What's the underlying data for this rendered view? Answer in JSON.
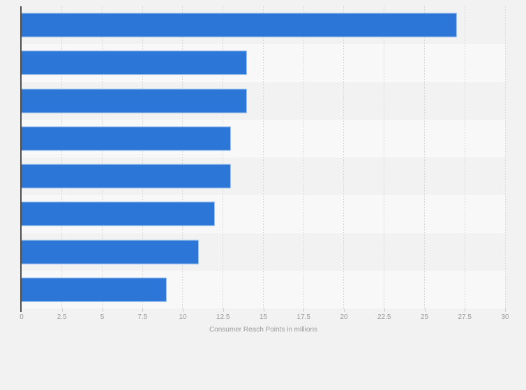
{
  "chart_data": {
    "type": "bar",
    "orientation": "horizontal",
    "title": "",
    "categories": [
      "",
      "",
      "",
      "",
      "",
      "",
      "",
      ""
    ],
    "values": [
      27,
      14,
      14,
      13,
      13,
      12,
      11,
      9
    ],
    "xlabel": "Consumer Reach Points in millions",
    "ylabel": "",
    "xlim": [
      0,
      30
    ],
    "xticks": [
      0,
      2.5,
      5,
      7.5,
      10,
      12.5,
      15,
      17.5,
      20,
      22.5,
      25,
      27.5,
      30
    ],
    "xtick_labels": [
      "0",
      "2.5",
      "5",
      "7.5",
      "10",
      "12.5",
      "15",
      "17.5",
      "20",
      "22.5",
      "25",
      "27.5",
      "30"
    ],
    "grid": true,
    "gridline_style": "dashed-vertical",
    "legend": false,
    "bar_color": "#2b76d6",
    "bar_border_color": "#a9c4ea"
  },
  "colors": {
    "page_background": "#f2f2f2",
    "band_light": "#f8f8f8",
    "band_dark": "#f2f2f2",
    "gridline": "#d8d8d8",
    "axis_line": "#4f4f4f",
    "tick_mark": "#cccccc",
    "axis_text": "#9a9a9a"
  }
}
